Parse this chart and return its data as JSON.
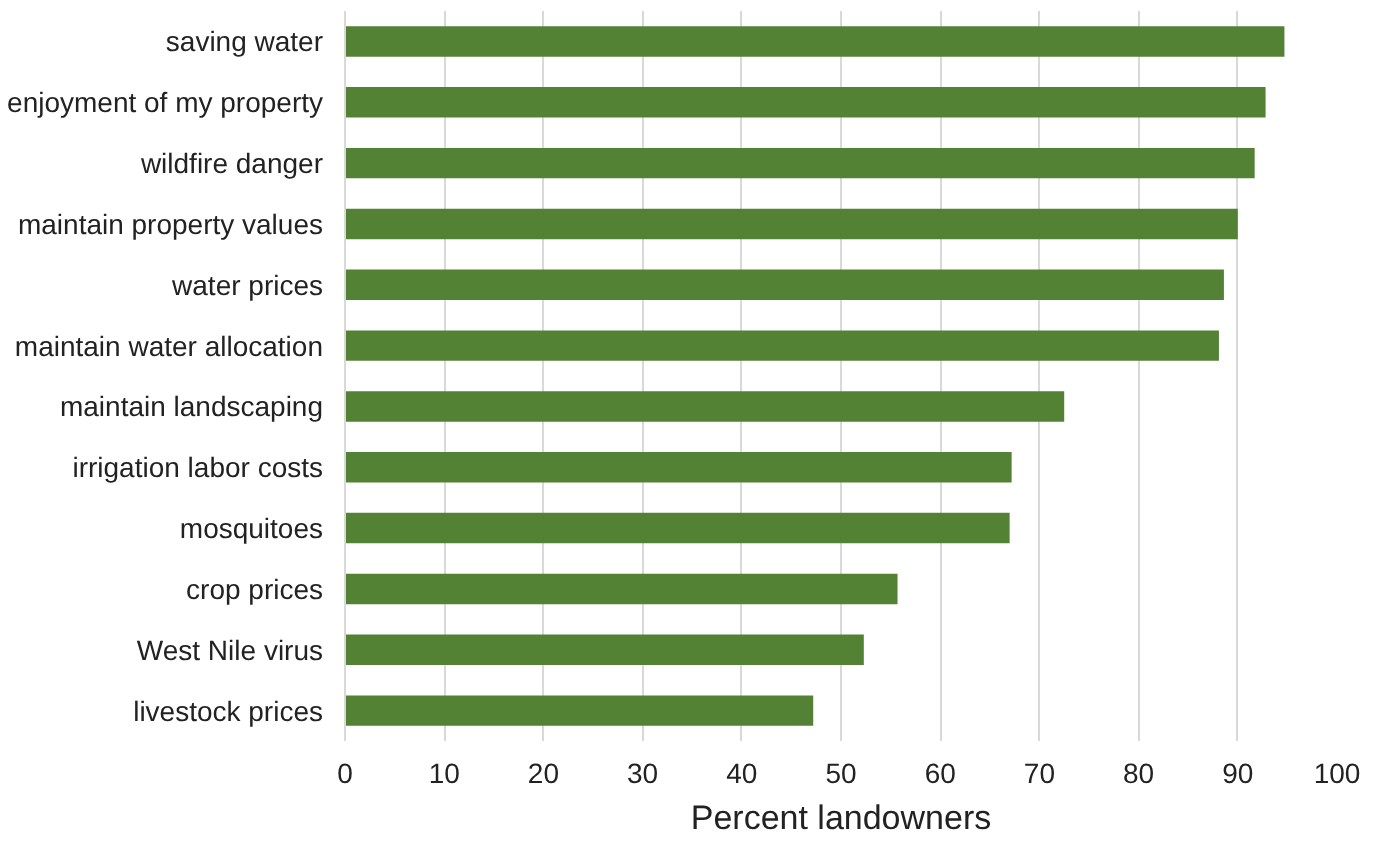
{
  "chart_data": {
    "type": "bar",
    "orientation": "horizontal",
    "xlabel": "Percent landowners",
    "categories": [
      "saving water",
      "enjoyment of my property",
      "wildfire danger",
      "maintain property values",
      "water prices",
      "maintain water allocation",
      "maintain landscaping",
      "irrigation labor costs",
      "mosquitoes",
      "crop prices",
      "West Nile virus",
      "livestock prices"
    ],
    "values": [
      94.7,
      92.8,
      91.7,
      90.0,
      88.6,
      88.1,
      72.5,
      67.2,
      67.0,
      55.7,
      52.3,
      47.2
    ],
    "color": "#548235",
    "xlim": [
      0,
      100
    ],
    "xticks": [
      0,
      10,
      20,
      30,
      40,
      50,
      60,
      70,
      80,
      90,
      100
    ],
    "grid": "x"
  }
}
